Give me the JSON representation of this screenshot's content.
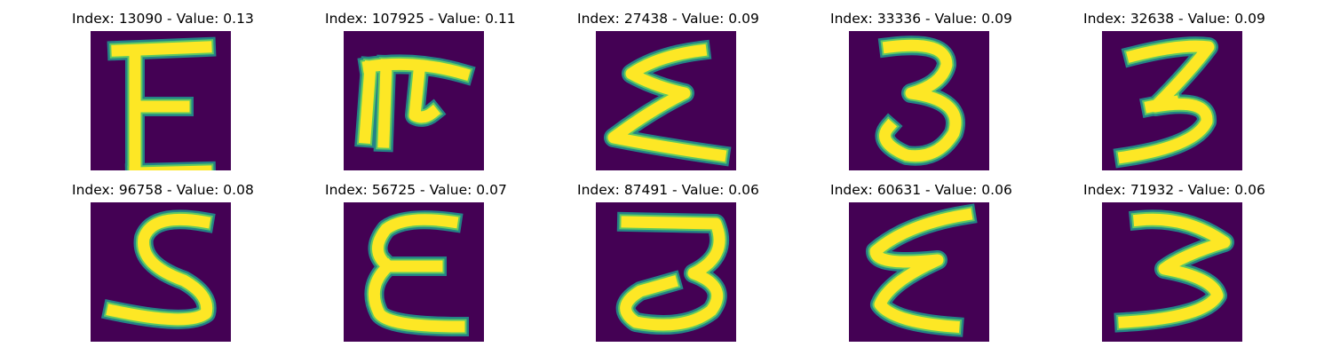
{
  "colors": {
    "background": "#440154",
    "stroke_edge": "#21918c",
    "stroke_mid": "#5ec962",
    "stroke_core": "#fde725"
  },
  "images": [
    {
      "title": "Index: 13090 - Value: 0.13",
      "glyph": "E"
    },
    {
      "title": "Index: 107925 - Value: 0.11",
      "glyph": "F"
    },
    {
      "title": "Index: 27438 - Value: 0.09",
      "glyph": "Σ"
    },
    {
      "title": "Index: 33336 - Value: 0.09",
      "glyph": "3"
    },
    {
      "title": "Index: 32638 - Value: 0.09",
      "glyph": "3"
    },
    {
      "title": "Index: 96758 - Value: 0.08",
      "glyph": "S"
    },
    {
      "title": "Index: 56725 - Value: 0.07",
      "glyph": "ε"
    },
    {
      "title": "Index: 87491 - Value: 0.06",
      "glyph": "3"
    },
    {
      "title": "Index: 60631 - Value: 0.06",
      "glyph": "ε"
    },
    {
      "title": "Index: 71932 - Value: 0.06",
      "glyph": "3"
    }
  ]
}
